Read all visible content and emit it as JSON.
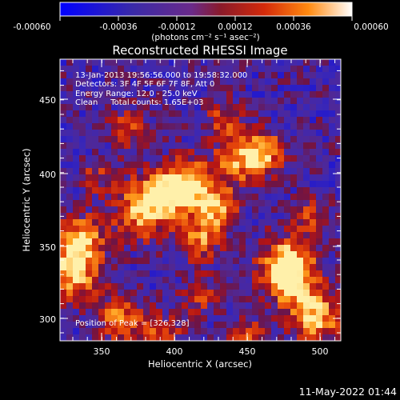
{
  "colorbar": {
    "ticks": [
      "-0.00060",
      "-0.00036",
      "-0.00012",
      "0.00012",
      "0.00036",
      "0.00060"
    ],
    "units": "(photons cm⁻² s⁻¹ asec⁻²)",
    "range": [
      -0.0006,
      0.0006
    ]
  },
  "image": {
    "title": "Reconstructed RHESSI Image",
    "xlabel": "Heliocentric X (arcsec)",
    "ylabel": "Heliocentric Y (arcsec)",
    "xticks": [
      "350",
      "400",
      "450",
      "500"
    ],
    "yticks": [
      "300",
      "350",
      "400",
      "450"
    ],
    "xlim": [
      321,
      513
    ],
    "ylim": [
      287,
      481
    ],
    "info": [
      "13-Jan-2013 19:56:56.000 to 19:58:32.000",
      "Detectors: 3F 4F 5F 6F 7F 8F, Att 0",
      "Energy Range: 12.0 - 25.0 keV",
      "Clean     Total counts: 1.65E+03"
    ],
    "peak": "Position of Peak = [326,328]"
  },
  "timestamp": "11-May-2022 01:44"
}
